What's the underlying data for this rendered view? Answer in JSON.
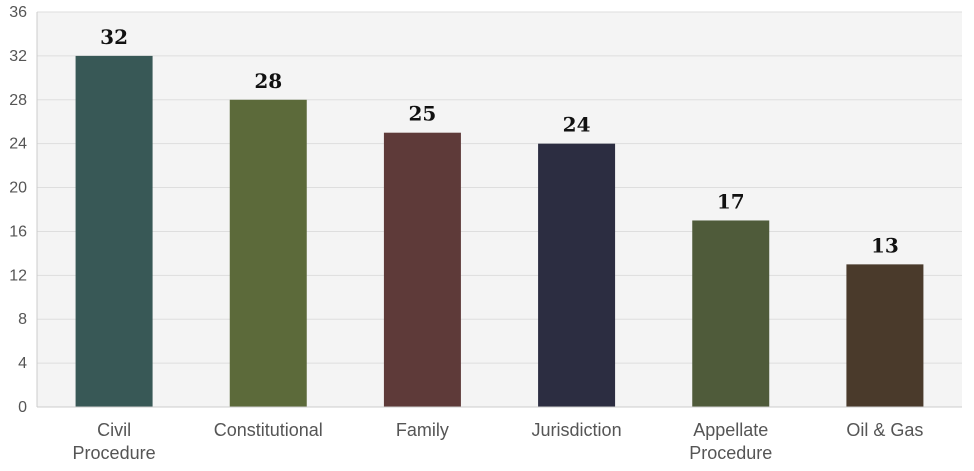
{
  "chart_data": {
    "type": "bar",
    "categories": [
      [
        "Civil",
        "Procedure"
      ],
      [
        "Constitutional"
      ],
      [
        "Family"
      ],
      [
        "Jurisdiction"
      ],
      [
        "Appellate",
        "Procedure"
      ],
      [
        "Oil & Gas"
      ]
    ],
    "values": [
      32,
      28,
      25,
      24,
      17,
      13
    ],
    "data_labels": [
      "32",
      "28",
      "25",
      "24",
      "17",
      "13"
    ],
    "colors": [
      "#385856",
      "#5c6a3a",
      "#5e3a39",
      "#2c2d41",
      "#4f5b3a",
      "#4a3a2b"
    ],
    "ylim": [
      0,
      36
    ],
    "yticks": [
      0,
      4,
      8,
      12,
      16,
      20,
      24,
      28,
      32,
      36
    ],
    "grid": true,
    "plot_background": "#f4f4f4",
    "title": "",
    "xlabel": "",
    "ylabel": ""
  }
}
